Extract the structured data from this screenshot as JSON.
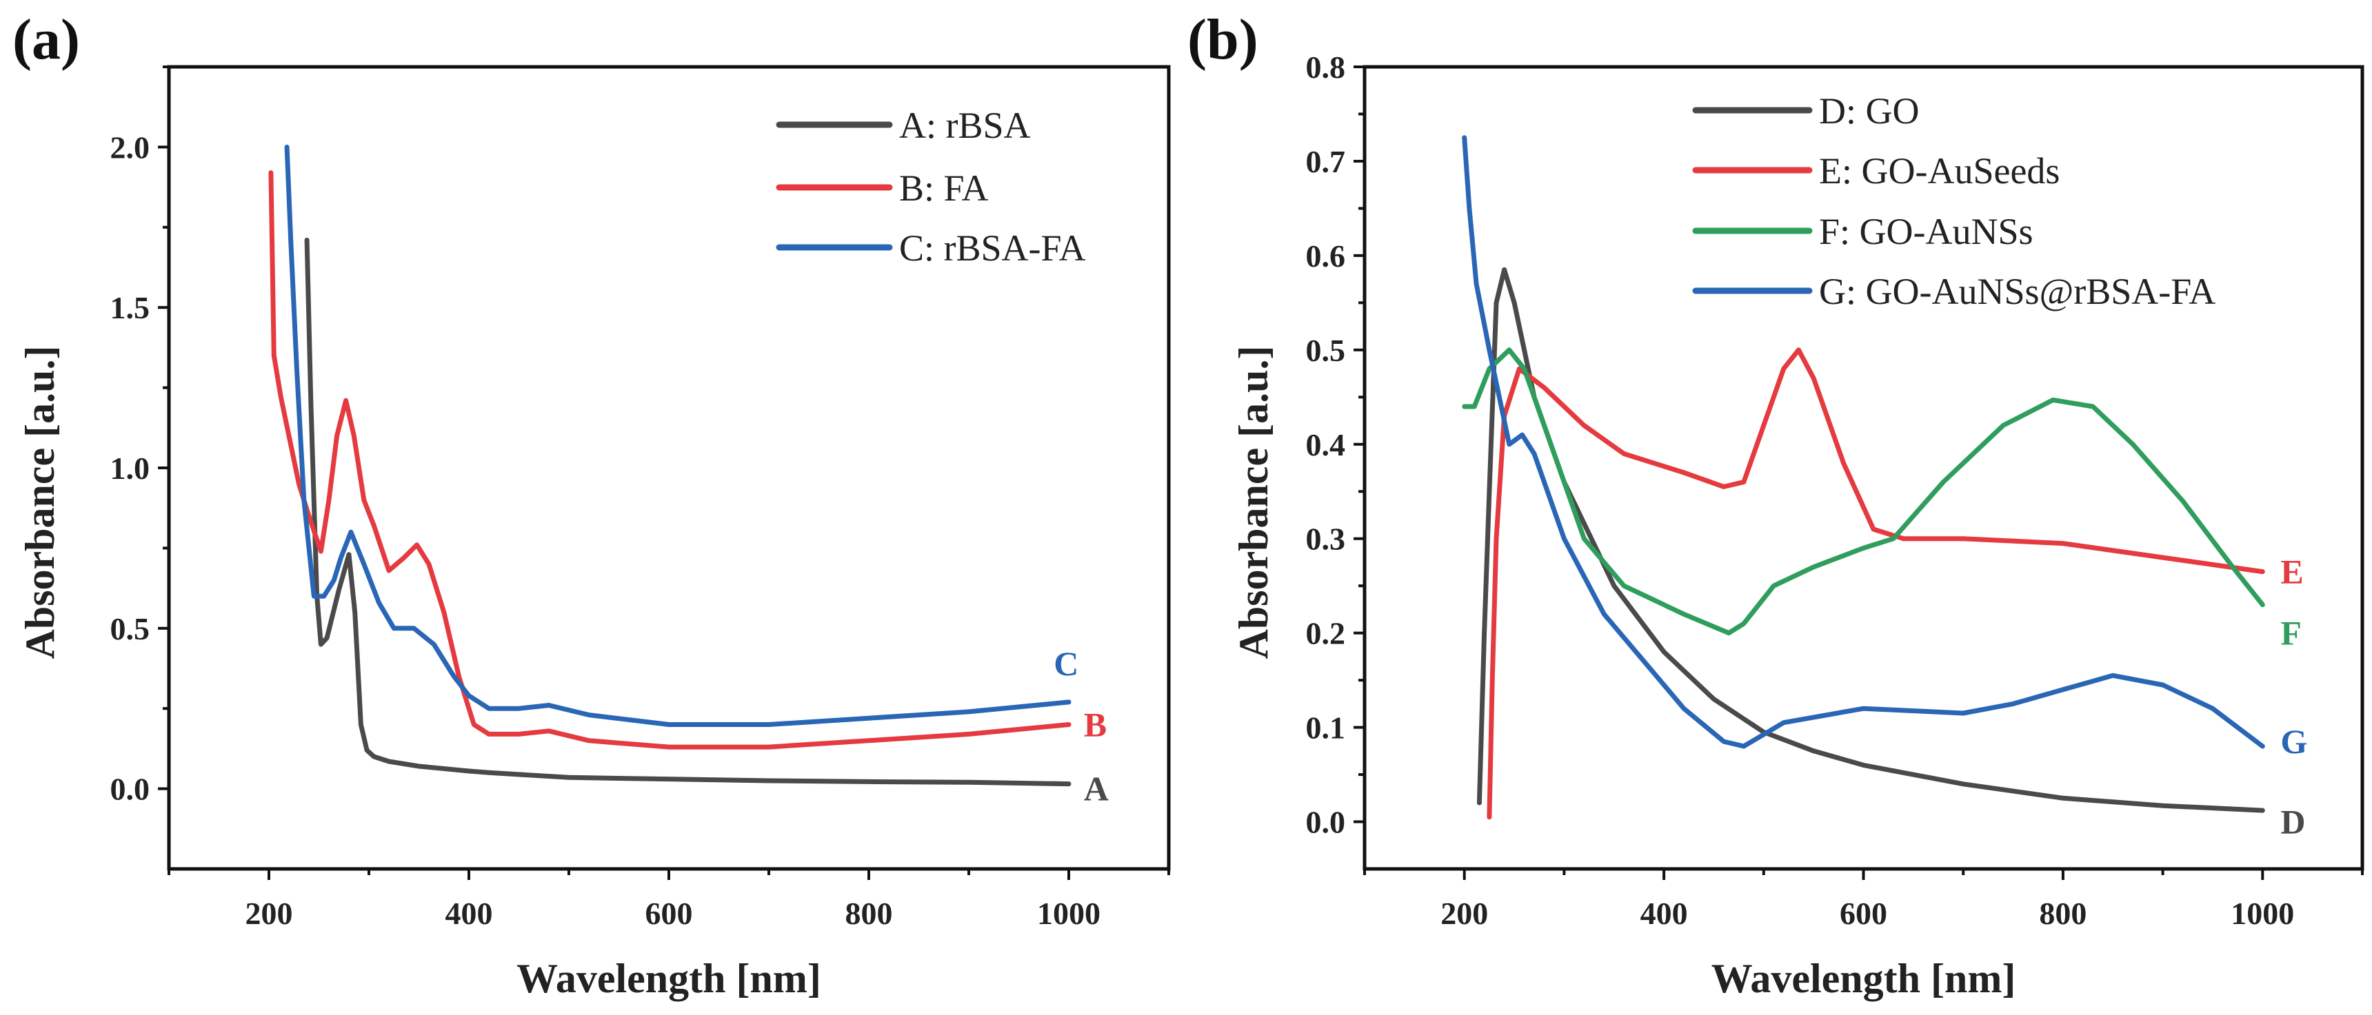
{
  "chart_data": [
    {
      "type": "line",
      "panel_label": "(a)",
      "xlabel": "Wavelength [nm]",
      "ylabel": "Absorbance [a.u.]",
      "xlim": [
        100,
        1100
      ],
      "ylim": [
        -0.25,
        2.25
      ],
      "xticks": [
        200,
        400,
        600,
        800,
        1000
      ],
      "xtick_labels": [
        "200",
        "400",
        "600",
        "800",
        "1000"
      ],
      "yticks": [
        0.0,
        0.5,
        1.0,
        1.5,
        2.0
      ],
      "ytick_labels": [
        "0.0",
        "0.5",
        "1.0",
        "1.5",
        "2.0"
      ],
      "legend_position": "top-right",
      "series": [
        {
          "name": "A: rBSA",
          "end_label": "A",
          "color": "#4a4a4a",
          "x": [
            238,
            242,
            248,
            252,
            258,
            262,
            270,
            280,
            286,
            292,
            298,
            305,
            320,
            350,
            400,
            420,
            500,
            600,
            700,
            800,
            900,
            1000
          ],
          "y": [
            1.71,
            1.2,
            0.6,
            0.45,
            0.47,
            0.52,
            0.62,
            0.73,
            0.55,
            0.2,
            0.12,
            0.1,
            0.085,
            0.07,
            0.055,
            0.05,
            0.035,
            0.03,
            0.025,
            0.022,
            0.02,
            0.015
          ]
        },
        {
          "name": "B: FA",
          "end_label": "B",
          "color": "#e53a3f",
          "x": [
            202,
            205,
            212,
            220,
            230,
            240,
            252,
            260,
            268,
            277,
            285,
            295,
            305,
            320,
            335,
            348,
            360,
            375,
            390,
            405,
            420,
            450,
            480,
            520,
            600,
            700,
            800,
            900,
            1000
          ],
          "y": [
            1.92,
            1.35,
            1.22,
            1.1,
            0.95,
            0.85,
            0.74,
            0.9,
            1.1,
            1.21,
            1.1,
            0.9,
            0.82,
            0.68,
            0.72,
            0.76,
            0.7,
            0.55,
            0.35,
            0.2,
            0.17,
            0.17,
            0.18,
            0.15,
            0.13,
            0.13,
            0.15,
            0.17,
            0.2
          ]
        },
        {
          "name": "C: rBSA-FA",
          "end_label": "C",
          "color": "#2a66b6",
          "x": [
            218,
            222,
            228,
            235,
            245,
            255,
            265,
            272,
            282,
            295,
            310,
            325,
            345,
            365,
            385,
            400,
            420,
            450,
            480,
            520,
            600,
            700,
            800,
            900,
            1000
          ],
          "y": [
            2.0,
            1.7,
            1.3,
            0.9,
            0.6,
            0.6,
            0.65,
            0.72,
            0.8,
            0.7,
            0.58,
            0.5,
            0.5,
            0.45,
            0.35,
            0.29,
            0.25,
            0.25,
            0.26,
            0.23,
            0.2,
            0.2,
            0.22,
            0.24,
            0.27
          ]
        }
      ]
    },
    {
      "type": "line",
      "panel_label": "(b)",
      "xlabel": "Wavelength [nm]",
      "ylabel": "Absorbance [a.u.]",
      "xlim": [
        100,
        1100
      ],
      "ylim": [
        -0.05,
        0.8
      ],
      "xticks": [
        200,
        400,
        600,
        800,
        1000
      ],
      "xtick_labels": [
        "200",
        "400",
        "600",
        "800",
        "1000"
      ],
      "yticks": [
        0.0,
        0.1,
        0.2,
        0.3,
        0.4,
        0.5,
        0.6,
        0.7,
        0.8
      ],
      "ytick_labels": [
        "0.0",
        "0.1",
        "0.2",
        "0.3",
        "0.4",
        "0.5",
        "0.6",
        "0.7",
        "0.8"
      ],
      "legend_position": "top-right",
      "series": [
        {
          "name": "D: GO",
          "end_label": "D",
          "color": "#4a4a4a",
          "x": [
            215,
            220,
            225,
            232,
            240,
            250,
            270,
            300,
            350,
            400,
            450,
            500,
            550,
            600,
            700,
            800,
            900,
            1000
          ],
          "y": [
            0.02,
            0.2,
            0.35,
            0.55,
            0.585,
            0.55,
            0.45,
            0.36,
            0.25,
            0.18,
            0.13,
            0.095,
            0.075,
            0.06,
            0.04,
            0.025,
            0.017,
            0.012
          ]
        },
        {
          "name": "E: GO-AuSeeds",
          "end_label": "E",
          "color": "#e53a3f",
          "x": [
            225,
            228,
            232,
            240,
            255,
            280,
            320,
            360,
            420,
            460,
            480,
            500,
            520,
            535,
            550,
            580,
            610,
            640,
            700,
            800,
            900,
            1000
          ],
          "y": [
            0.005,
            0.15,
            0.3,
            0.43,
            0.48,
            0.46,
            0.42,
            0.39,
            0.37,
            0.355,
            0.36,
            0.42,
            0.48,
            0.5,
            0.47,
            0.38,
            0.31,
            0.3,
            0.3,
            0.295,
            0.28,
            0.265
          ]
        },
        {
          "name": "F: GO-AuNSs",
          "end_label": "F",
          "color": "#2f9e5c",
          "x": [
            200,
            210,
            225,
            245,
            260,
            280,
            320,
            360,
            420,
            465,
            480,
            510,
            550,
            600,
            630,
            680,
            740,
            790,
            830,
            870,
            920,
            970,
            1000
          ],
          "y": [
            0.44,
            0.44,
            0.48,
            0.5,
            0.48,
            0.42,
            0.3,
            0.25,
            0.22,
            0.2,
            0.21,
            0.25,
            0.27,
            0.29,
            0.3,
            0.36,
            0.42,
            0.447,
            0.44,
            0.4,
            0.34,
            0.27,
            0.23
          ]
        },
        {
          "name": "G: GO-AuNSs@rBSA-FA",
          "end_label": "G",
          "color": "#2a66b6",
          "x": [
            200,
            205,
            212,
            225,
            245,
            258,
            270,
            300,
            340,
            380,
            420,
            460,
            480,
            520,
            600,
            700,
            750,
            800,
            850,
            900,
            950,
            1000
          ],
          "y": [
            0.725,
            0.65,
            0.57,
            0.5,
            0.4,
            0.41,
            0.39,
            0.3,
            0.22,
            0.17,
            0.12,
            0.085,
            0.08,
            0.105,
            0.12,
            0.115,
            0.125,
            0.14,
            0.155,
            0.145,
            0.12,
            0.08
          ]
        }
      ]
    }
  ]
}
